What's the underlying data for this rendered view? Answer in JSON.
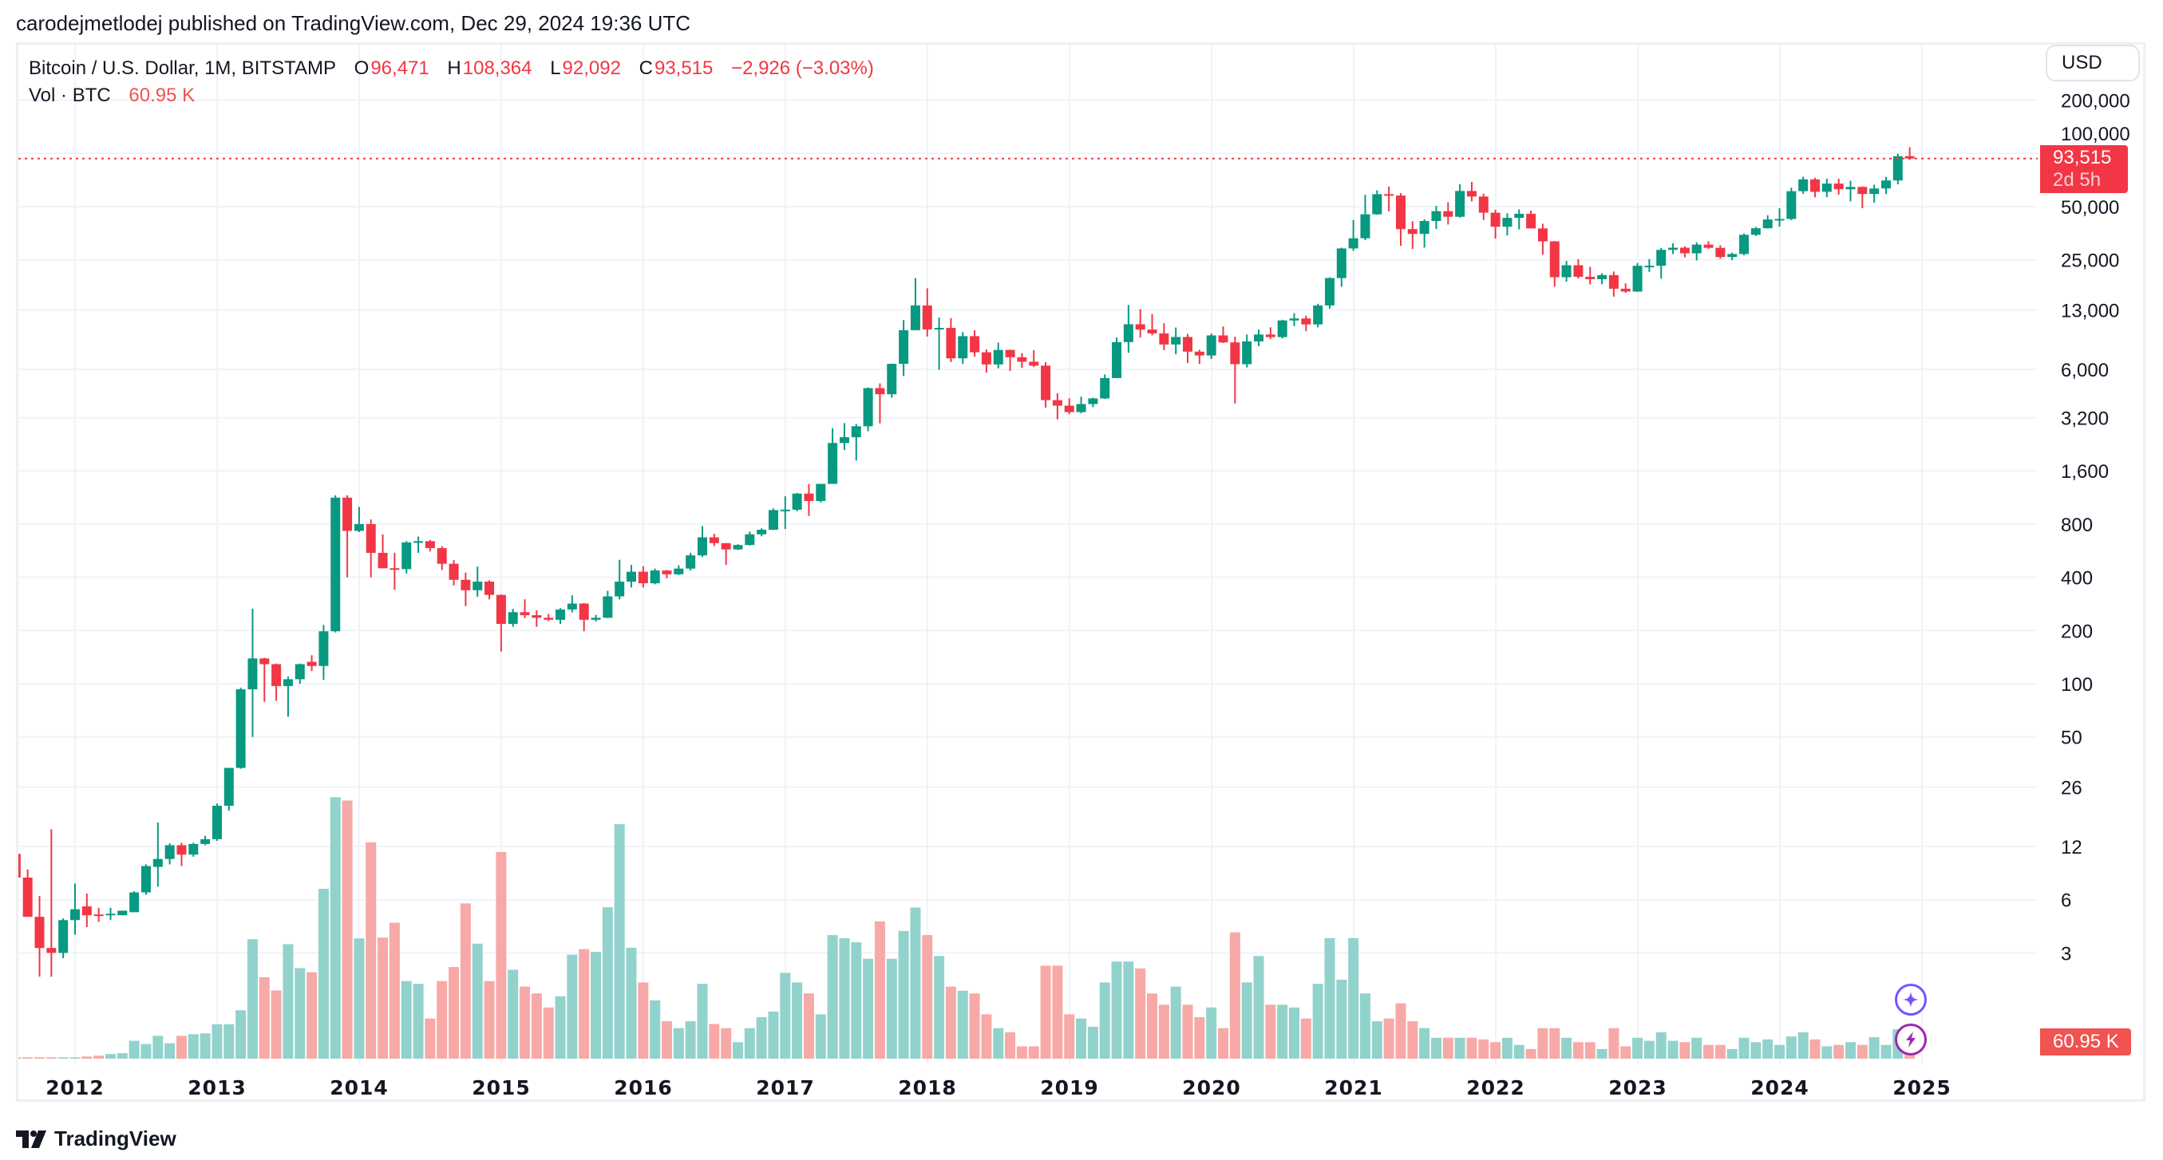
{
  "header": {
    "published": "carodejmetlodej published on TradingView.com, Dec 29, 2024 19:36 UTC"
  },
  "legend": {
    "symbol": "Bitcoin / U.S. Dollar, 1M, BITSTAMP",
    "o_label": "O",
    "o": "96,471",
    "h_label": "H",
    "h": "108,364",
    "l_label": "L",
    "l": "92,092",
    "c_label": "C",
    "c": "93,515",
    "change": "−2,926 (−3.03%)",
    "vol_label": "Vol · BTC",
    "vol": "60.95 K"
  },
  "currency_button": "USD",
  "price_label": {
    "price": "93,515",
    "countdown": "2d 5h"
  },
  "volume_label": "60.95 K",
  "logo": "TradingView",
  "icons": [
    "sparkle-icon",
    "lightning-icon"
  ],
  "colors": {
    "up": "#089981",
    "down": "#f23645",
    "vol_up": "#92d2cc",
    "vol_down": "#f7a9a7",
    "last_price_line": "#f23645",
    "volume_label": "#f05350"
  },
  "chart_data": {
    "type": "candlestick",
    "title": "Bitcoin / U.S. Dollar, 1M, BITSTAMP",
    "y_scale": "log",
    "y_unit": "USD",
    "volume_unit": "K BTC",
    "grid": true,
    "y_ticks": [
      {
        "label": "200,000",
        "value": 200000
      },
      {
        "label": "100,000",
        "value": 100000
      },
      {
        "label": "50,000",
        "value": 50000
      },
      {
        "label": "25,000",
        "value": 25000
      },
      {
        "label": "13,000",
        "value": 13000
      },
      {
        "label": "6,000",
        "value": 6000
      },
      {
        "label": "3,200",
        "value": 3200
      },
      {
        "label": "1,600",
        "value": 1600
      },
      {
        "label": "800",
        "value": 800
      },
      {
        "label": "400",
        "value": 400
      },
      {
        "label": "200",
        "value": 200
      },
      {
        "label": "100",
        "value": 100
      },
      {
        "label": "50",
        "value": 50
      },
      {
        "label": "26",
        "value": 26
      },
      {
        "label": "12",
        "value": 12
      },
      {
        "label": "6",
        "value": 6
      },
      {
        "label": "3",
        "value": 3
      }
    ],
    "x_ticks": [
      "2012",
      "2013",
      "2014",
      "2015",
      "2016",
      "2017",
      "2018",
      "2019",
      "2020",
      "2021",
      "2022",
      "2023",
      "2024",
      "2025"
    ],
    "last_price": 93515,
    "columns": [
      "month",
      "open",
      "high",
      "low",
      "close",
      "volume"
    ],
    "candles": [
      [
        "2011-08",
        10.9,
        11.9,
        7.9,
        8.0,
        5
      ],
      [
        "2011-09",
        8.0,
        8.9,
        4.8,
        4.8,
        5
      ],
      [
        "2011-10",
        4.8,
        6.3,
        2.2,
        3.2,
        5
      ],
      [
        "2011-11",
        3.2,
        15,
        2.2,
        3.0,
        5
      ],
      [
        "2011-12",
        3.0,
        4.7,
        2.8,
        4.6,
        5
      ],
      [
        "2012-01",
        4.6,
        7.4,
        3.8,
        5.3,
        5
      ],
      [
        "2012-02",
        5.5,
        6.5,
        4.2,
        4.9,
        8
      ],
      [
        "2012-03",
        4.95,
        5.4,
        4.5,
        4.9,
        11
      ],
      [
        "2012-04",
        4.9,
        5.4,
        4.6,
        5.0,
        17
      ],
      [
        "2012-05",
        4.9,
        5.2,
        4.9,
        5.2,
        20
      ],
      [
        "2012-06",
        5.1,
        6.7,
        5.1,
        6.6,
        65
      ],
      [
        "2012-07",
        6.6,
        9.5,
        6.4,
        9.3,
        53
      ],
      [
        "2012-08",
        9.2,
        16.4,
        7.1,
        10.2,
        83
      ],
      [
        "2012-09",
        10.2,
        12.5,
        9.5,
        12.2,
        56
      ],
      [
        "2012-10",
        12.2,
        12.6,
        9.3,
        10.8,
        83
      ],
      [
        "2012-11",
        10.8,
        12.6,
        10.5,
        12.4,
        89
      ],
      [
        "2012-12",
        12.4,
        13.8,
        12.2,
        13.2,
        92
      ],
      [
        "2013-01",
        13.2,
        21.0,
        12.9,
        20.4,
        125
      ],
      [
        "2013-02",
        20.4,
        33.4,
        19.1,
        33.4,
        125
      ],
      [
        "2013-03",
        33.4,
        95,
        33,
        93,
        176
      ],
      [
        "2013-04",
        93,
        266,
        50,
        139,
        434
      ],
      [
        "2013-05",
        139,
        140,
        79,
        129,
        296
      ],
      [
        "2013-06",
        129,
        130,
        80,
        97,
        248
      ],
      [
        "2013-07",
        97,
        110,
        65,
        106,
        416
      ],
      [
        "2013-08",
        106,
        130,
        100,
        129,
        329
      ],
      [
        "2013-09",
        133,
        145,
        118,
        126,
        314
      ],
      [
        "2013-10",
        126,
        215,
        105,
        198,
        617
      ],
      [
        "2013-11",
        198,
        1163,
        195,
        1129,
        950
      ],
      [
        "2013-12",
        1129,
        1163,
        400,
        732,
        938
      ],
      [
        "2014-01",
        732,
        1000,
        720,
        800,
        437
      ],
      [
        "2014-02",
        800,
        850,
        400,
        550,
        786
      ],
      [
        "2014-03",
        550,
        700,
        450,
        450,
        440
      ],
      [
        "2014-04",
        450,
        550,
        340,
        445,
        494
      ],
      [
        "2014-05",
        445,
        640,
        420,
        630,
        282
      ],
      [
        "2014-06",
        630,
        680,
        550,
        640,
        272
      ],
      [
        "2014-07",
        640,
        650,
        560,
        585,
        146
      ],
      [
        "2014-08",
        585,
        600,
        440,
        477,
        282
      ],
      [
        "2014-09",
        477,
        500,
        360,
        387,
        333
      ],
      [
        "2014-10",
        387,
        425,
        275,
        338,
        564
      ],
      [
        "2014-11",
        338,
        460,
        310,
        378,
        418
      ],
      [
        "2014-12",
        378,
        385,
        300,
        318,
        282
      ],
      [
        "2015-01",
        318,
        320,
        152,
        218,
        751
      ],
      [
        "2015-02",
        218,
        265,
        210,
        254,
        323
      ],
      [
        "2015-03",
        254,
        300,
        235,
        244,
        262
      ],
      [
        "2015-04",
        244,
        260,
        210,
        236,
        237
      ],
      [
        "2015-05",
        236,
        248,
        226,
        230,
        186
      ],
      [
        "2015-06",
        230,
        268,
        218,
        263,
        227
      ],
      [
        "2015-07",
        263,
        316,
        253,
        284,
        378
      ],
      [
        "2015-08",
        284,
        286,
        198,
        230,
        398
      ],
      [
        "2015-09",
        230,
        245,
        225,
        236,
        388
      ],
      [
        "2015-10",
        236,
        335,
        235,
        312,
        550
      ],
      [
        "2015-11",
        312,
        502,
        300,
        378,
        852
      ],
      [
        "2015-12",
        378,
        470,
        350,
        430,
        403
      ],
      [
        "2016-01",
        430,
        462,
        350,
        370,
        277
      ],
      [
        "2016-02",
        370,
        448,
        365,
        437,
        212
      ],
      [
        "2016-03",
        437,
        440,
        395,
        416,
        136
      ],
      [
        "2016-04",
        416,
        468,
        412,
        448,
        111
      ],
      [
        "2016-05",
        448,
        550,
        437,
        532,
        136
      ],
      [
        "2016-06",
        532,
        780,
        520,
        673,
        272
      ],
      [
        "2016-07",
        673,
        705,
        600,
        624,
        126
      ],
      [
        "2016-08",
        624,
        624,
        470,
        575,
        111
      ],
      [
        "2016-09",
        575,
        615,
        570,
        609,
        60
      ],
      [
        "2016-10",
        609,
        725,
        605,
        700,
        111
      ],
      [
        "2016-11",
        700,
        757,
        682,
        743,
        151
      ],
      [
        "2016-12",
        743,
        980,
        740,
        960,
        171
      ],
      [
        "2017-01",
        960,
        1150,
        750,
        965,
        312
      ],
      [
        "2017-02",
        965,
        1200,
        945,
        1190,
        277
      ],
      [
        "2017-03",
        1190,
        1350,
        890,
        1080,
        237
      ],
      [
        "2017-04",
        1080,
        1350,
        1060,
        1350,
        161
      ],
      [
        "2017-05",
        1350,
        2790,
        1350,
        2300,
        449
      ],
      [
        "2017-06",
        2300,
        2980,
        2100,
        2480,
        438
      ],
      [
        "2017-07",
        2480,
        2950,
        1830,
        2860,
        423
      ],
      [
        "2017-08",
        2860,
        4740,
        2680,
        4700,
        363
      ],
      [
        "2017-09",
        4700,
        5000,
        2970,
        4340,
        499
      ],
      [
        "2017-10",
        4340,
        6470,
        4150,
        6450,
        363
      ],
      [
        "2017-11",
        6450,
        11400,
        5500,
        10000,
        464
      ],
      [
        "2017-12",
        10000,
        19700,
        10000,
        13800,
        549
      ],
      [
        "2018-01",
        13800,
        17250,
        9200,
        10100,
        449
      ],
      [
        "2018-02",
        10100,
        11800,
        5970,
        10300,
        373
      ],
      [
        "2018-03",
        10300,
        11700,
        6600,
        6930,
        262
      ],
      [
        "2018-04",
        6930,
        9750,
        6430,
        9250,
        247
      ],
      [
        "2018-05",
        9250,
        9990,
        7080,
        7500,
        237
      ],
      [
        "2018-06",
        7500,
        7780,
        5750,
        6400,
        161
      ],
      [
        "2018-07",
        6400,
        8500,
        6080,
        7730,
        111
      ],
      [
        "2018-08",
        7730,
        7760,
        5880,
        7030,
        96
      ],
      [
        "2018-09",
        7030,
        7420,
        6120,
        6630,
        45
      ],
      [
        "2018-10",
        6630,
        7700,
        6180,
        6300,
        45
      ],
      [
        "2018-11",
        6300,
        6590,
        3650,
        4020,
        338
      ],
      [
        "2018-12",
        4020,
        4400,
        3130,
        3740,
        338
      ],
      [
        "2019-01",
        3740,
        4120,
        3350,
        3440,
        161
      ],
      [
        "2019-02",
        3440,
        4200,
        3390,
        3820,
        146
      ],
      [
        "2019-03",
        3820,
        4150,
        3670,
        4110,
        116
      ],
      [
        "2019-04",
        4110,
        5620,
        4080,
        5360,
        277
      ],
      [
        "2019-05",
        5360,
        9100,
        5350,
        8560,
        353
      ],
      [
        "2019-06",
        8560,
        13880,
        7450,
        10800,
        353
      ],
      [
        "2019-07",
        10800,
        13150,
        9080,
        10080,
        328
      ],
      [
        "2019-08",
        10080,
        12330,
        9350,
        9590,
        237
      ],
      [
        "2019-09",
        9590,
        10950,
        7710,
        8300,
        196
      ],
      [
        "2019-10",
        8300,
        10350,
        7310,
        9150,
        262
      ],
      [
        "2019-11",
        9150,
        9520,
        6530,
        7560,
        196
      ],
      [
        "2019-12",
        7560,
        7750,
        6440,
        7190,
        151
      ],
      [
        "2020-01",
        7190,
        9580,
        6870,
        9340,
        186
      ],
      [
        "2020-02",
        9340,
        10500,
        8450,
        8530,
        111
      ],
      [
        "2020-03",
        8530,
        9190,
        3850,
        6420,
        459
      ],
      [
        "2020-04",
        6420,
        9460,
        6150,
        8640,
        277
      ],
      [
        "2020-05",
        8640,
        10080,
        8120,
        9450,
        373
      ],
      [
        "2020-06",
        9450,
        10380,
        8900,
        9140,
        196
      ],
      [
        "2020-07",
        9140,
        11450,
        8980,
        11350,
        196
      ],
      [
        "2020-08",
        11350,
        12470,
        10550,
        11650,
        186
      ],
      [
        "2020-09",
        11650,
        12070,
        9870,
        10780,
        146
      ],
      [
        "2020-10",
        10780,
        14100,
        10380,
        13800,
        272
      ],
      [
        "2020-11",
        13800,
        19900,
        13200,
        19710,
        438
      ],
      [
        "2020-12",
        19710,
        29300,
        17600,
        28990,
        287
      ],
      [
        "2021-01",
        28990,
        41950,
        28100,
        33110,
        438
      ],
      [
        "2021-02",
        33110,
        58350,
        32300,
        45240,
        237
      ],
      [
        "2021-03",
        45240,
        61780,
        44950,
        58800,
        136
      ],
      [
        "2021-04",
        58800,
        64900,
        47000,
        57750,
        146
      ],
      [
        "2021-05",
        57750,
        59600,
        30000,
        37300,
        201
      ],
      [
        "2021-06",
        37300,
        41300,
        28800,
        35040,
        136
      ],
      [
        "2021-07",
        35040,
        42400,
        29300,
        41460,
        111
      ],
      [
        "2021-08",
        41460,
        50500,
        37300,
        47100,
        76
      ],
      [
        "2021-09",
        47100,
        52900,
        39600,
        43800,
        76
      ],
      [
        "2021-10",
        43800,
        67000,
        43300,
        61300,
        76
      ],
      [
        "2021-11",
        61300,
        69000,
        53500,
        57000,
        76
      ],
      [
        "2021-12",
        57000,
        59100,
        42000,
        46200,
        70
      ],
      [
        "2022-01",
        46200,
        47990,
        32950,
        38470,
        60
      ],
      [
        "2022-02",
        38470,
        45850,
        34320,
        43180,
        76
      ],
      [
        "2022-03",
        43180,
        48200,
        37200,
        45520,
        50
      ],
      [
        "2022-04",
        45520,
        47450,
        37700,
        37640,
        35
      ],
      [
        "2022-05",
        37640,
        40000,
        26700,
        31790,
        111
      ],
      [
        "2022-06",
        31790,
        31990,
        17600,
        19930,
        111
      ],
      [
        "2022-07",
        19930,
        24650,
        18800,
        23300,
        76
      ],
      [
        "2022-08",
        23300,
        25200,
        19600,
        20050,
        60
      ],
      [
        "2022-09",
        20050,
        22800,
        18150,
        19430,
        60
      ],
      [
        "2022-10",
        19430,
        20990,
        18180,
        20490,
        35
      ],
      [
        "2022-11",
        20490,
        21460,
        15480,
        17160,
        111
      ],
      [
        "2022-12",
        17160,
        18390,
        16260,
        16540,
        45
      ],
      [
        "2023-01",
        16540,
        23950,
        16500,
        23130,
        76
      ],
      [
        "2023-02",
        23130,
        25250,
        21350,
        23150,
        65
      ],
      [
        "2023-03",
        23150,
        29200,
        19560,
        28470,
        96
      ],
      [
        "2023-04",
        28470,
        31000,
        26950,
        29270,
        65
      ],
      [
        "2023-05",
        29270,
        29840,
        25820,
        27220,
        60
      ],
      [
        "2023-06",
        27220,
        31390,
        24800,
        30470,
        76
      ],
      [
        "2023-07",
        30470,
        31850,
        28860,
        29230,
        50
      ],
      [
        "2023-08",
        29230,
        30200,
        25360,
        25940,
        50
      ],
      [
        "2023-09",
        25940,
        27480,
        24900,
        26970,
        35
      ],
      [
        "2023-10",
        26970,
        35250,
        26550,
        34640,
        76
      ],
      [
        "2023-11",
        34640,
        38400,
        34100,
        37720,
        60
      ],
      [
        "2023-12",
        37720,
        44700,
        37620,
        42280,
        70
      ],
      [
        "2024-01",
        42280,
        48970,
        38520,
        42580,
        50
      ],
      [
        "2024-02",
        42580,
        64000,
        41880,
        61130,
        81
      ],
      [
        "2024-03",
        61130,
        73790,
        59000,
        71290,
        96
      ],
      [
        "2024-04",
        71290,
        72800,
        56500,
        60640,
        70
      ],
      [
        "2024-05",
        60640,
        71950,
        56550,
        67490,
        45
      ],
      [
        "2024-06",
        67490,
        71950,
        58400,
        62690,
        50
      ],
      [
        "2024-07",
        62690,
        70000,
        53500,
        64620,
        60
      ],
      [
        "2024-08",
        64620,
        65100,
        49000,
        58970,
        50
      ],
      [
        "2024-09",
        58970,
        66500,
        52550,
        63330,
        78
      ],
      [
        "2024-10",
        63330,
        73600,
        58900,
        70290,
        50
      ],
      [
        "2024-11",
        70290,
        99600,
        66800,
        96471,
        107
      ],
      [
        "2024-12",
        96471,
        108364,
        92092,
        93515,
        60.95
      ]
    ]
  }
}
